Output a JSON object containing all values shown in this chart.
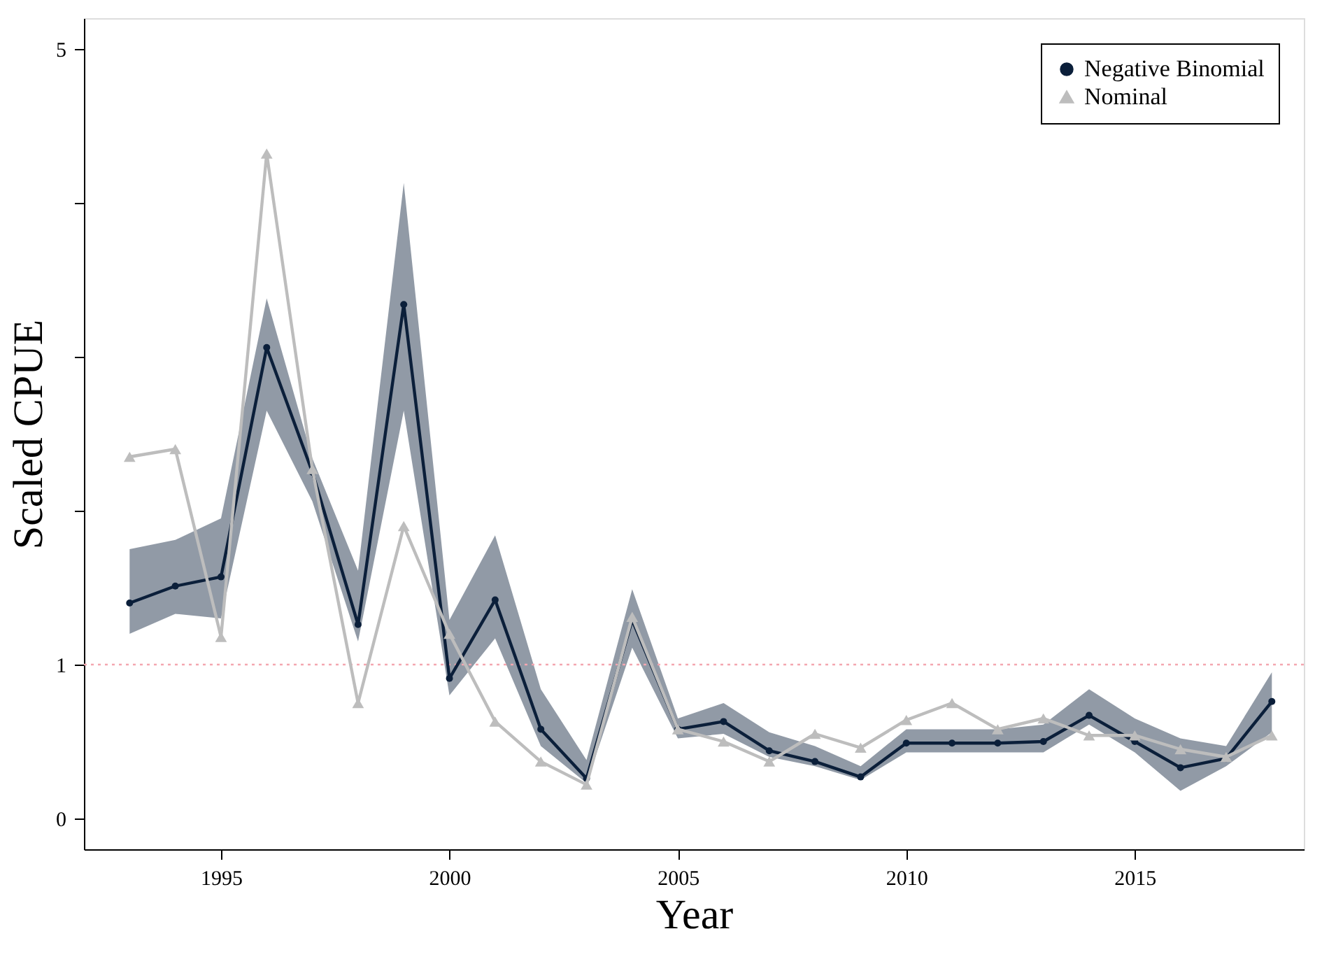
{
  "chart_data": {
    "type": "line",
    "xlabel": "Year",
    "ylabel": "Scaled CPUE",
    "x": [
      1993,
      1994,
      1995,
      1996,
      1997,
      1998,
      1999,
      2000,
      2001,
      2002,
      2003,
      2004,
      2005,
      2006,
      2007,
      2008,
      2009,
      2010,
      2011,
      2012,
      2013,
      2014,
      2015,
      2016,
      2017,
      2018
    ],
    "series": [
      {
        "name": "Negative Binomial",
        "color": "#0b1f3a",
        "marker": "circle",
        "values": [
          1.4,
          1.51,
          1.57,
          3.06,
          2.25,
          1.26,
          3.34,
          0.91,
          1.42,
          0.58,
          0.26,
          1.29,
          0.58,
          0.63,
          0.44,
          0.37,
          0.27,
          0.49,
          0.49,
          0.49,
          0.5,
          0.67,
          0.5,
          0.33,
          0.39,
          0.76
        ],
        "lower": [
          1.2,
          1.33,
          1.3,
          2.65,
          2.06,
          1.15,
          2.65,
          0.8,
          1.17,
          0.47,
          0.23,
          1.11,
          0.52,
          0.55,
          0.4,
          0.34,
          0.25,
          0.43,
          0.43,
          0.43,
          0.43,
          0.61,
          0.43,
          0.18,
          0.34,
          0.56
        ],
        "upper": [
          1.75,
          1.81,
          1.95,
          3.38,
          2.34,
          1.61,
          4.13,
          1.29,
          1.84,
          0.84,
          0.38,
          1.49,
          0.65,
          0.75,
          0.56,
          0.47,
          0.34,
          0.58,
          0.58,
          0.58,
          0.61,
          0.84,
          0.65,
          0.52,
          0.47,
          0.95
        ]
      },
      {
        "name": "Nominal",
        "color": "#bdbdbd",
        "marker": "triangle",
        "values": [
          2.35,
          2.4,
          1.18,
          4.32,
          2.27,
          0.75,
          1.9,
          1.2,
          0.63,
          0.37,
          0.22,
          1.31,
          0.58,
          0.5,
          0.37,
          0.55,
          0.46,
          0.64,
          0.75,
          0.58,
          0.65,
          0.54,
          0.54,
          0.45,
          0.4,
          0.54
        ]
      }
    ],
    "xlim": [
      1992,
      2018.7
    ],
    "xticks": [
      1995,
      2000,
      2005,
      2010,
      2015
    ],
    "ylim": [
      -0.2,
      5.2
    ],
    "yticks": [
      0,
      1,
      {
        "value": 2,
        "label": null
      },
      {
        "value": 3,
        "label": null
      },
      {
        "value": 4,
        "label": null
      },
      5
    ],
    "ref_lines": [
      {
        "axis": "y",
        "value": 1,
        "color": "#f4a6b0",
        "line_style": "dotted"
      }
    ],
    "legend": "top right",
    "grid": false,
    "line_style": "solid"
  }
}
